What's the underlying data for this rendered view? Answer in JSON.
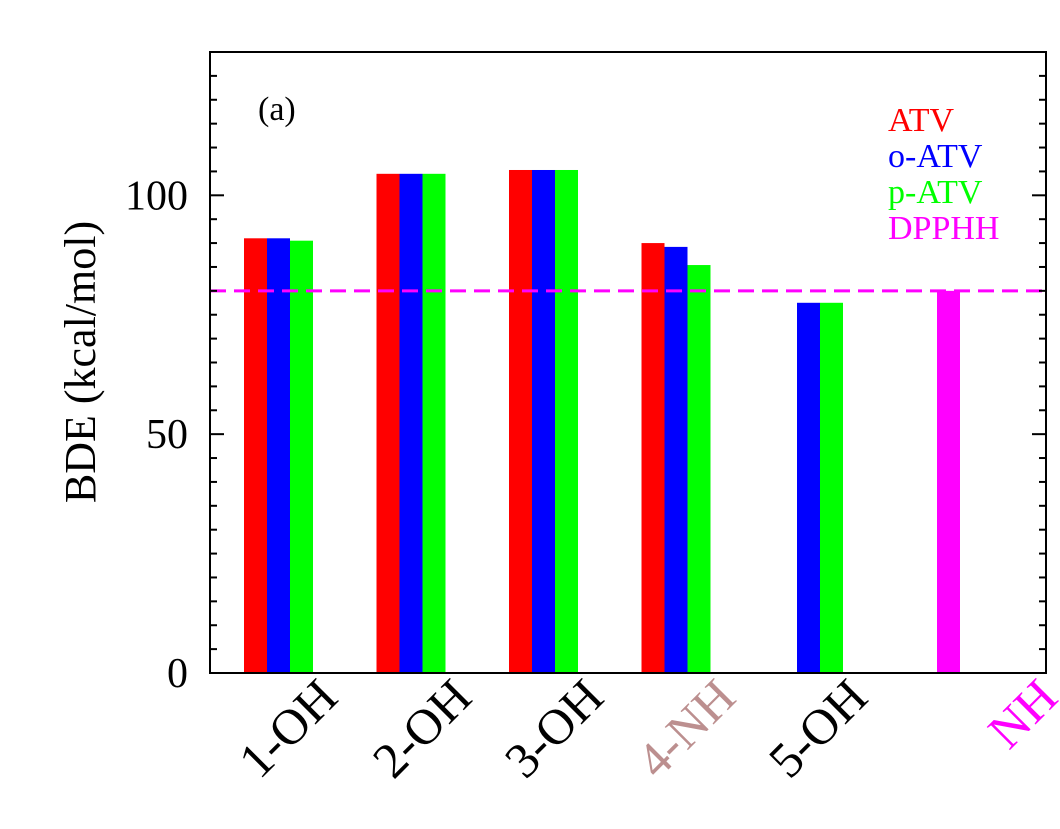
{
  "chart_data": {
    "type": "bar",
    "panel_label": "(a)",
    "ylabel": "BDE (kcal/mol)",
    "xlabel": "",
    "ylim": [
      0,
      130
    ],
    "yticks": [
      0,
      50,
      100
    ],
    "categories": [
      "1-OH",
      "2-OH",
      "3-OH",
      "4-NH",
      "5-OH",
      "NH"
    ],
    "category_colors": [
      "#000000",
      "#000000",
      "#000000",
      "#bc8f8f",
      "#000000",
      "#ff00ff"
    ],
    "series": [
      {
        "name": "ATV",
        "color": "#ff0000",
        "values": [
          91,
          104.5,
          105.3,
          90,
          null,
          null
        ]
      },
      {
        "name": "o-ATV",
        "color": "#0000ff",
        "values": [
          91,
          104.5,
          105.3,
          89.2,
          77.5,
          null
        ]
      },
      {
        "name": "p-ATV",
        "color": "#00ff00",
        "values": [
          90.5,
          104.5,
          105.3,
          85.4,
          77.5,
          null
        ]
      },
      {
        "name": "DPPHH",
        "color": "#ff00ff",
        "values": [
          null,
          null,
          null,
          null,
          null,
          80
        ]
      }
    ],
    "reference_line": {
      "value": 80,
      "color": "#ff00ff",
      "style": "dashed"
    },
    "legend_position": "top-right"
  }
}
